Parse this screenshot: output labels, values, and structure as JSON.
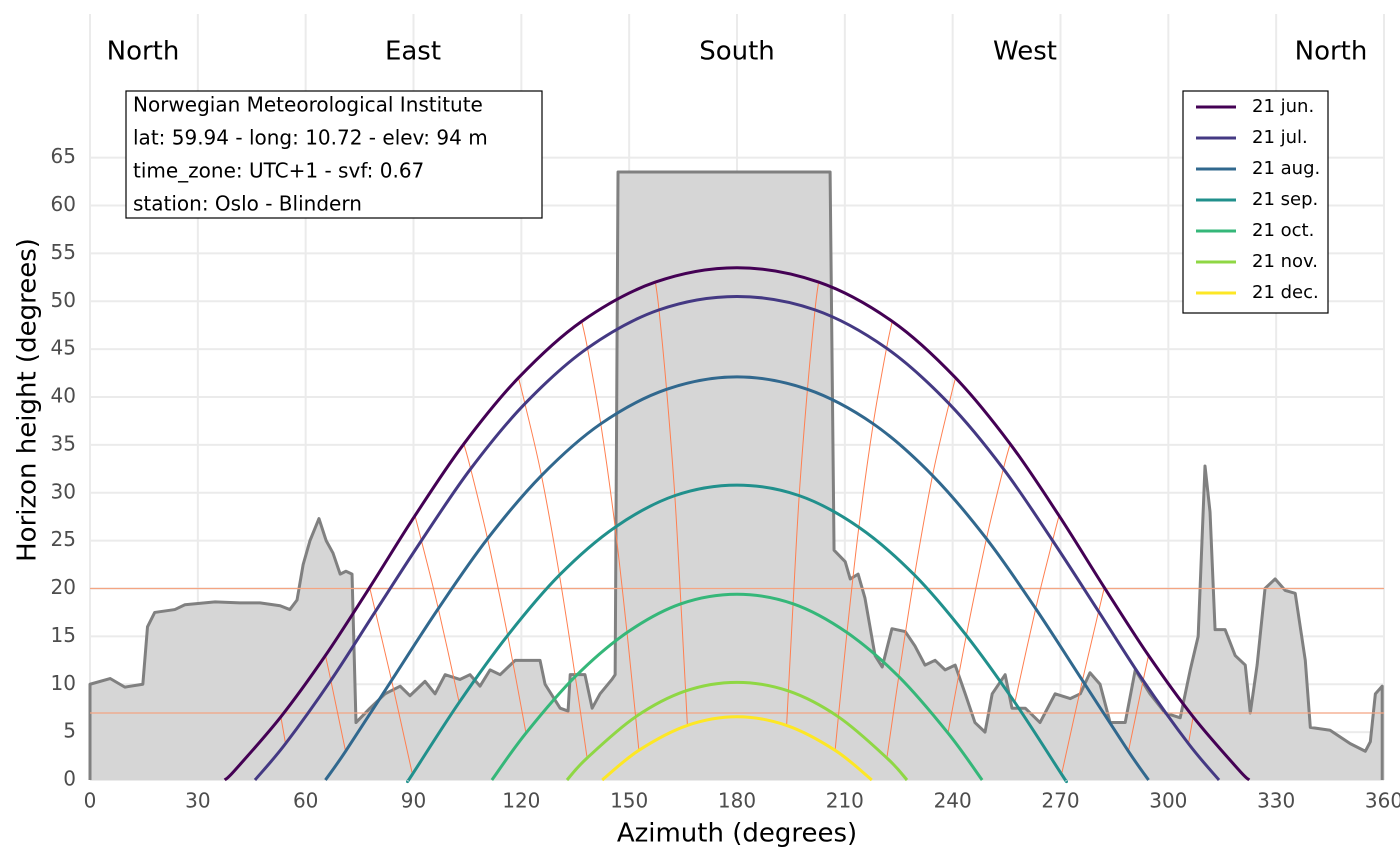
{
  "chart_data": {
    "type": "line",
    "xlabel": "Azimuth (degrees)",
    "ylabel": "Horizon height (degrees)",
    "compass": [
      "North",
      "East",
      "South",
      "West",
      "North"
    ],
    "info": [
      "Norwegian Meteorological Institute",
      "lat: 59.94 - long: 10.72 - elev: 94 m",
      "time_zone: UTC+1 - svf: 0.67",
      "station: Oslo - Blindern"
    ],
    "xlim": [
      0,
      360
    ],
    "xticks": [
      0,
      30,
      60,
      90,
      120,
      150,
      180,
      210,
      240,
      270,
      300,
      330,
      360
    ],
    "ylim": [
      0,
      80
    ],
    "yticks": [
      0,
      5,
      10,
      15,
      20,
      25,
      30,
      35,
      40,
      45,
      50,
      55,
      60,
      65
    ],
    "grid": true,
    "legend": "top-right",
    "hlines": [
      20,
      7
    ],
    "hline_color": "#f4a582",
    "hour_line_color": "#ff7f50",
    "horizon": {
      "color": "#808080",
      "fill": "#d6d6d6",
      "x": [
        0,
        5.6,
        9.7,
        14.7,
        16,
        18,
        23.6,
        26.4,
        34.8,
        41.7,
        47.3,
        52.9,
        55.6,
        57.6,
        59.3,
        61.2,
        63.7,
        65.7,
        67.6,
        69.6,
        71.2,
        72.9,
        74,
        77.9,
        82.1,
        86.3,
        89,
        93.2,
        96,
        98.8,
        102.9,
        105.7,
        108.5,
        111.3,
        114.1,
        118.3,
        125.2,
        126.6,
        130.8,
        133,
        133.6,
        137.7,
        139.7,
        141.9,
        145.2,
        146.1,
        146.9,
        205.9,
        207,
        210.1,
        211.5,
        213.7,
        215.6,
        217,
        218.4,
        220.4,
        223.1,
        226.8,
        229.5,
        232.3,
        235.1,
        237.9,
        240.7,
        243.5,
        246.2,
        249,
        251,
        254.6,
        256.5,
        260.2,
        264.3,
        268.5,
        272.7,
        275.5,
        278.2,
        281,
        283.8,
        288,
        290.8,
        294.9,
        299.1,
        303.3,
        306.1,
        308.3,
        310.2,
        311.6,
        313,
        315.8,
        318.6,
        321.4,
        322.8,
        324.7,
        326.9,
        329.7,
        332.5,
        335.3,
        338.1,
        339.5,
        345,
        350.6,
        354.8,
        356.2,
        357.6,
        359.5
      ],
      "values": [
        10,
        10.6,
        9.7,
        10,
        16,
        17.5,
        17.8,
        18.3,
        18.6,
        18.5,
        18.5,
        18.2,
        17.8,
        18.8,
        22.5,
        25,
        27.3,
        25,
        23.7,
        21.5,
        21.8,
        21.5,
        6,
        7.5,
        9,
        9.8,
        8.8,
        10.3,
        9,
        11,
        10.5,
        11,
        9.8,
        11.5,
        11,
        12.5,
        12.5,
        10,
        7.5,
        7.2,
        11,
        11,
        7.5,
        9,
        10.5,
        11,
        63.5,
        63.5,
        24,
        22.8,
        21,
        21.5,
        19,
        16,
        13,
        11.8,
        15.8,
        15.5,
        14,
        12,
        12.5,
        11.5,
        12,
        9,
        6,
        5,
        9,
        11,
        7.5,
        7.5,
        6,
        9,
        8.5,
        9,
        11.2,
        10,
        6,
        6,
        11.5,
        9,
        7,
        6.5,
        11.5,
        15,
        32.8,
        28,
        15.7,
        15.7,
        13,
        12,
        7,
        12,
        20,
        21,
        19.8,
        19.5,
        12.5,
        5.5,
        5.2,
        3.8,
        3,
        4,
        9,
        9.8
      ]
    },
    "series": [
      {
        "name": "21 jun.",
        "color": "#440154",
        "x": [
          37.5,
          40.5,
          53.1,
          65.5,
          77.8,
          90.4,
          104.0,
          119.2,
          136.8,
          157.3,
          180,
          202.7,
          223.2,
          240.8,
          256.0,
          269.6,
          282.2,
          294.5,
          306.9,
          319.5,
          322.5
        ],
        "values": [
          0,
          1.1,
          6.6,
          13.0,
          20.1,
          27.6,
          35.1,
          42.0,
          47.9,
          52.0,
          53.5,
          52.0,
          47.9,
          42.0,
          35.1,
          27.6,
          20.1,
          13.0,
          6.6,
          1.1,
          0
        ]
      },
      {
        "name": "21 jul.",
        "color": "#443983",
        "x": [
          45.9,
          54.4,
          67.0,
          79.4,
          92.2,
          105.9,
          121.0,
          138.4,
          158.3,
          180,
          201.7,
          221.6,
          239.0,
          254.1,
          267.8,
          280.6,
          293.0,
          305.6,
          314.1
        ],
        "values": [
          0,
          3.8,
          10.4,
          17.6,
          25.0,
          32.5,
          39.3,
          45.1,
          49.1,
          50.5,
          49.1,
          45.1,
          39.3,
          32.5,
          25.0,
          17.6,
          10.4,
          3.8,
          0
        ]
      },
      {
        "name": "21 aug.",
        "color": "#31688e",
        "x": [
          65.5,
          71.1,
          83.9,
          96.9,
          110.6,
          125.6,
          142.1,
          160.4,
          180,
          199.6,
          217.9,
          234.4,
          249.4,
          263.1,
          276.1,
          288.9,
          294.5
        ],
        "values": [
          0,
          3.0,
          10.4,
          17.9,
          25.2,
          31.8,
          37.2,
          40.8,
          42.1,
          40.8,
          37.2,
          31.8,
          25.2,
          17.9,
          10.4,
          3.0,
          0
        ]
      },
      {
        "name": "21 sep.",
        "color": "#21908c",
        "x": [
          88.6,
          89.7,
          102.7,
          116.2,
          130.6,
          146.1,
          162.7,
          180,
          197.3,
          213.9,
          229.4,
          243.8,
          257.3,
          270.3,
          271.4
        ],
        "values": [
          0,
          0.6,
          8.1,
          15.1,
          21.4,
          26.4,
          29.7,
          30.8,
          29.7,
          26.4,
          21.4,
          15.1,
          8.1,
          0.6,
          0
        ]
      },
      {
        "name": "21 oct.",
        "color": "#35b779",
        "x": [
          111.8,
          121.3,
          135.0,
          149.4,
          164.4,
          180,
          195.6,
          210.6,
          225.0,
          238.7,
          248.2
        ],
        "values": [
          0,
          4.9,
          10.8,
          15.4,
          18.4,
          19.4,
          18.4,
          15.4,
          10.8,
          4.9,
          0
        ]
      },
      {
        "name": "21 nov.",
        "color": "#8fd744",
        "x": [
          132.7,
          138.3,
          151.8,
          165.7,
          180,
          194.3,
          208.2,
          221.7,
          227.3
        ],
        "values": [
          0,
          2.3,
          6.6,
          9.3,
          10.2,
          9.3,
          6.6,
          2.3,
          0
        ]
      },
      {
        "name": "21 dec.",
        "color": "#fde725",
        "x": [
          142.5,
          152.7,
          166.2,
          180,
          193.8,
          207.3,
          217.5
        ],
        "values": [
          0,
          3.1,
          5.7,
          6.6,
          5.7,
          3.1,
          0
        ]
      }
    ]
  }
}
